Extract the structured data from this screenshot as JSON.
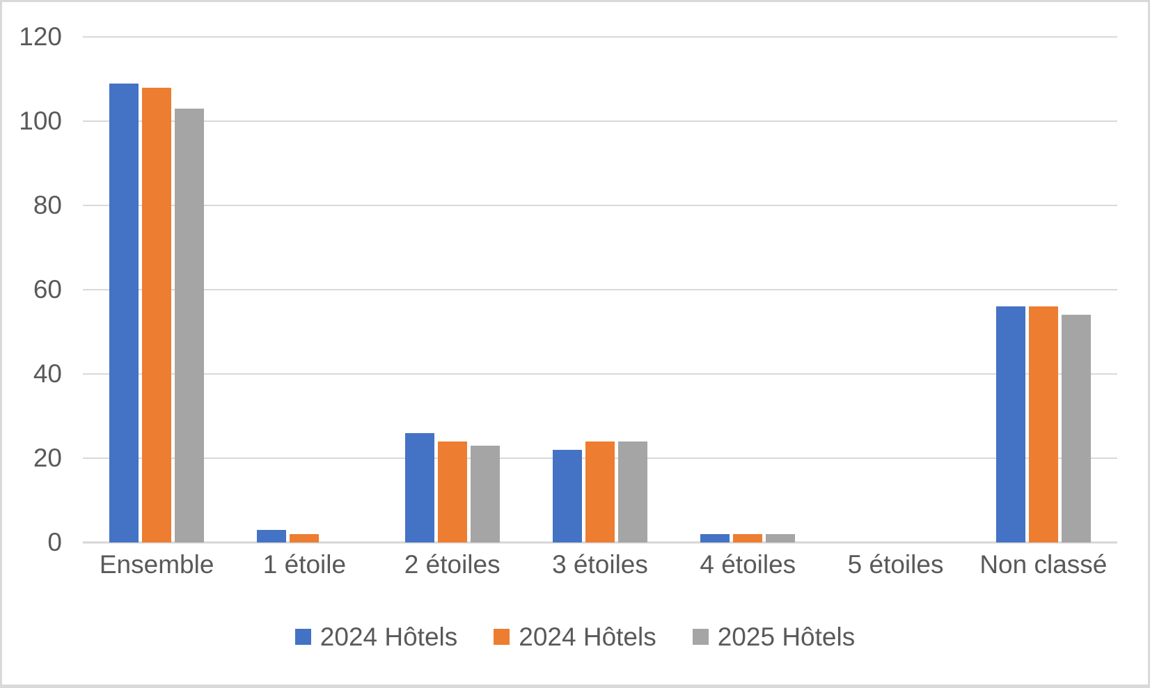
{
  "chart_data": {
    "type": "bar",
    "title": "",
    "xlabel": "",
    "ylabel": "",
    "categories": [
      "Ensemble",
      "1 étoile",
      "2 étoiles",
      "3 étoiles",
      "4 étoiles",
      "5 étoiles",
      "Non classé"
    ],
    "series": [
      {
        "name": "2024 Hôtels",
        "color": "#4472C4",
        "values": [
          109,
          3,
          26,
          22,
          2,
          0,
          56
        ]
      },
      {
        "name": "2024 Hôtels",
        "color": "#ED7D31",
        "values": [
          108,
          2,
          24,
          24,
          2,
          0,
          56
        ]
      },
      {
        "name": "2025 Hôtels",
        "color": "#A5A5A5",
        "values": [
          103,
          0,
          23,
          24,
          2,
          0,
          54
        ]
      }
    ],
    "ylim": [
      0,
      120
    ],
    "yticks": [
      0,
      20,
      40,
      60,
      80,
      100,
      120
    ],
    "grid": true,
    "legend_position": "bottom"
  },
  "colors": {
    "gridline": "#D9D9D9",
    "axis_text": "#595959",
    "frame_border": "#D9D9D9",
    "background": "#FFFFFF"
  }
}
